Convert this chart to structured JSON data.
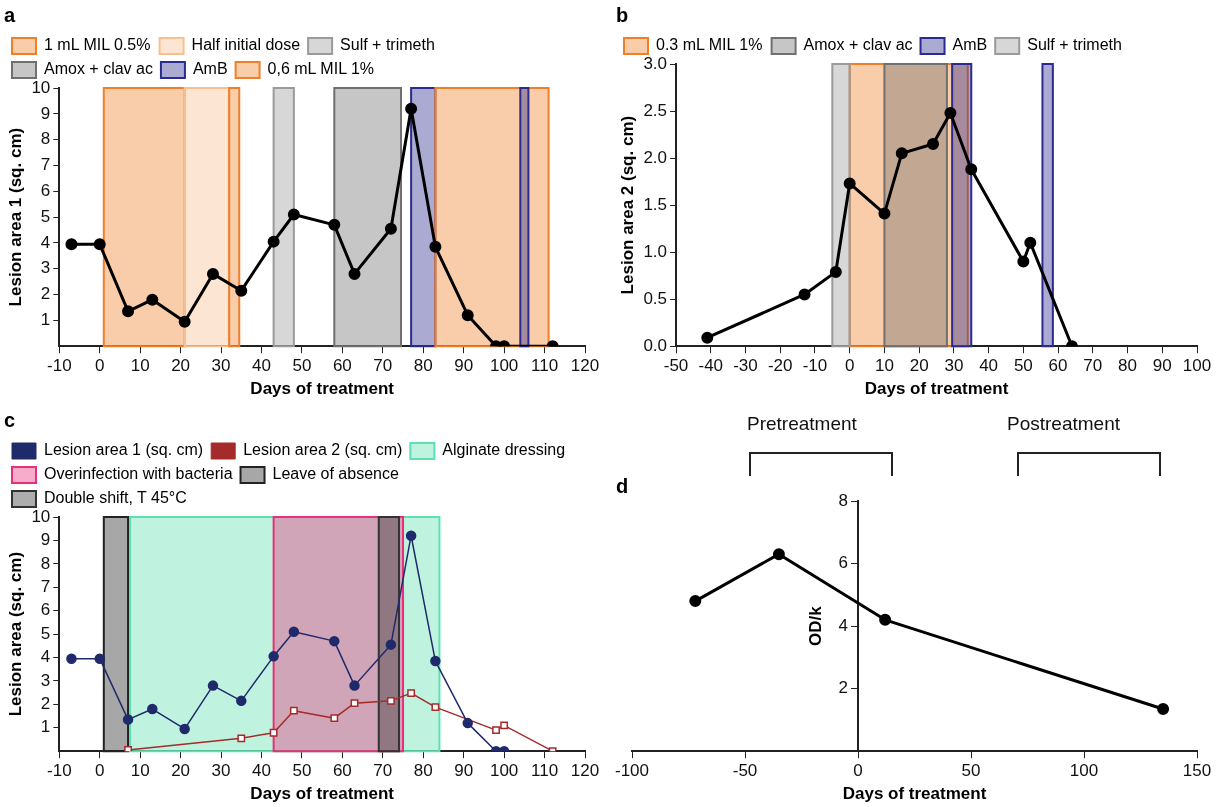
{
  "chart_data": [
    {
      "type": "line",
      "title": "a",
      "xlabel": "Days of treatment",
      "ylabel": "Lesion area 1 (sq. cm)",
      "xlim": [
        -10,
        120
      ],
      "xticks": [
        -10,
        0,
        10,
        20,
        30,
        40,
        50,
        60,
        70,
        80,
        90,
        100,
        110,
        120
      ],
      "ylim": [
        0,
        10
      ],
      "yticks": [
        1,
        2,
        3,
        4,
        5,
        6,
        7,
        8,
        9,
        10
      ],
      "marker": "circle",
      "legend": "top",
      "series": [
        {
          "color": "#000000",
          "x": [
            -7,
            0,
            7,
            13,
            21,
            28,
            35,
            43,
            48,
            58,
            63,
            72,
            77,
            83,
            91,
            98,
            100,
            112
          ],
          "values": [
            3.95,
            3.95,
            1.35,
            1.8,
            0.95,
            2.8,
            2.15,
            4.05,
            5.1,
            4.7,
            2.8,
            4.55,
            9.2,
            3.85,
            1.2,
            0,
            0,
            0
          ]
        }
      ],
      "bands": [
        {
          "axis": "x",
          "from": 1,
          "to": 21,
          "label": "1 mL MIL 0.5%",
          "color": "#f07f2a"
        },
        {
          "axis": "x",
          "from": 21,
          "to": 32,
          "label": "Half initial dose",
          "color": "#f8c090"
        },
        {
          "axis": "x",
          "from": 43,
          "to": 48,
          "label": "Sulf + trimeth",
          "color": "#9a9a9a"
        },
        {
          "axis": "x",
          "from": 58,
          "to": 74.5,
          "label": "Amox + clav ac",
          "color": "#707070"
        },
        {
          "axis": "x",
          "from": 77,
          "to": 83,
          "label": "AmB",
          "color": "#2b2b8f"
        },
        {
          "axis": "x",
          "from": 83,
          "to": 111,
          "label": "0,6 mL MIL 1%",
          "color": "#f07f2a"
        },
        {
          "axis": "x",
          "from": 32,
          "to": 34.5,
          "color": "#f07f2a"
        },
        {
          "axis": "x",
          "from": 104,
          "to": 106,
          "color": "#2b2b8f"
        }
      ]
    },
    {
      "type": "line",
      "title": "b",
      "xlabel": "Days of treatment",
      "ylabel": "Lesion area 2 (sq. cm)",
      "xlim": [
        -50,
        100
      ],
      "xticks": [
        -50,
        -40,
        -30,
        -20,
        -10,
        0,
        10,
        20,
        30,
        40,
        50,
        60,
        70,
        80,
        90,
        100
      ],
      "ylim": [
        0,
        3
      ],
      "yticks": [
        {
          "value": 0,
          "label": "0.0"
        },
        {
          "value": 0.5,
          "label": "0.5"
        },
        {
          "value": 1,
          "label": "1.0"
        },
        {
          "value": 1.5,
          "label": "1.5"
        },
        {
          "value": 2,
          "label": "2.0"
        },
        {
          "value": 2.5,
          "label": "2.5"
        },
        {
          "value": 3,
          "label": "3.0"
        }
      ],
      "marker": "circle",
      "legend": "top",
      "series": [
        {
          "color": "#000000",
          "x": [
            -41,
            -13,
            -4,
            0,
            10,
            15,
            24,
            29,
            35,
            50,
            52,
            64
          ],
          "values": [
            0.09,
            0.55,
            0.79,
            1.73,
            1.41,
            2.05,
            2.15,
            2.48,
            1.88,
            0.9,
            1.1,
            0
          ]
        }
      ],
      "bands": [
        {
          "axis": "x",
          "from": 0,
          "to": 34,
          "label": "0.3 mL MIL 1%",
          "color": "#f07f2a"
        },
        {
          "axis": "x",
          "from": 10,
          "to": 28,
          "label": "Amox + clav ac",
          "color": "#707070"
        },
        {
          "axis": "x",
          "from": 29.5,
          "to": 35,
          "label": "AmB",
          "color": "#2b2b8f"
        },
        {
          "axis": "x",
          "from": -5,
          "to": 0,
          "label": "Sulf + trimeth",
          "color": "#9a9a9a"
        },
        {
          "axis": "x",
          "from": 55.5,
          "to": 58.5,
          "color": "#2b2b8f"
        }
      ]
    },
    {
      "type": "line",
      "title": "c",
      "xlabel": "Days of treatment",
      "ylabel": "Lesion area (sq. cm)",
      "xlim": [
        -10,
        120
      ],
      "xticks": [
        -10,
        0,
        10,
        20,
        30,
        40,
        50,
        60,
        70,
        80,
        90,
        100,
        110,
        120
      ],
      "ylim": [
        0,
        10
      ],
      "yticks": [
        1,
        2,
        3,
        4,
        5,
        6,
        7,
        8,
        9,
        10
      ],
      "legend": "top",
      "series": [
        {
          "name": "Lesion area 1 (sq. cm)",
          "color": "#1f2a6b",
          "marker": "circle",
          "x": [
            -7,
            0,
            7,
            13,
            21,
            28,
            35,
            43,
            48,
            58,
            63,
            72,
            77,
            83,
            91,
            98,
            100
          ],
          "values": [
            3.95,
            3.95,
            1.35,
            1.8,
            0.95,
            2.8,
            2.15,
            4.05,
            5.1,
            4.7,
            2.8,
            4.55,
            9.2,
            3.85,
            1.2,
            0,
            0
          ]
        },
        {
          "name": "Lesion area 2 (sq. cm)",
          "color": "#a52a2a",
          "marker": "square",
          "x": [
            7,
            35,
            43,
            48,
            58,
            63,
            72,
            77,
            83,
            98,
            100,
            112
          ],
          "values": [
            0.05,
            0.55,
            0.79,
            1.73,
            1.41,
            2.05,
            2.15,
            2.48,
            1.88,
            0.9,
            1.1,
            0
          ]
        }
      ],
      "bands": [
        {
          "axis": "x",
          "from": 7.5,
          "to": 84,
          "label": "Alginate dressing",
          "color": "#5fe0b0"
        },
        {
          "axis": "x",
          "from": 43,
          "to": 75,
          "label": "Overinfection with bacteria",
          "color": "#e8307a"
        },
        {
          "axis": "x",
          "from": 1,
          "to": 7,
          "label": "Leave of absence",
          "color": "#222222"
        },
        {
          "axis": "x",
          "from": 69,
          "to": 74,
          "label": "Double shift, T 45°C",
          "color": "#333333"
        }
      ]
    },
    {
      "type": "line",
      "title": "d",
      "xlabel": "Days of treatment",
      "ylabel": "OD/k",
      "xlim": [
        -100,
        150
      ],
      "xticks": [
        -100,
        -50,
        0,
        50,
        100,
        150
      ],
      "ylim": [
        0,
        8
      ],
      "yticks": [
        2,
        4,
        6,
        8
      ],
      "marker": "circle",
      "annotations": [
        "Pretreatment",
        "Postreatment"
      ],
      "series": [
        {
          "color": "#000000",
          "x": [
            -72,
            -35,
            12,
            135
          ],
          "values": [
            4.8,
            6.3,
            4.2,
            1.35
          ]
        }
      ]
    }
  ]
}
